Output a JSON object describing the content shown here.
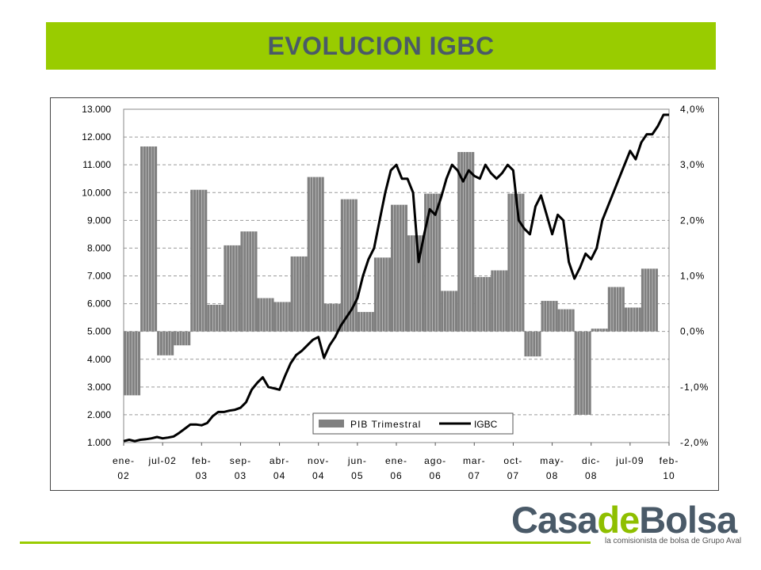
{
  "header": {
    "title": "EVOLUCION IGBC"
  },
  "logo": {
    "part1": "Casa",
    "part2": "de",
    "part3": "Bolsa",
    "tagline": "la comisionista de bolsa de Grupo Aval",
    "colors": {
      "dark": "#4a5a68",
      "green": "#8fbf00"
    }
  },
  "colors": {
    "banner": "#99cc00",
    "bars": "#808080",
    "line": "#000000"
  },
  "chart_data": {
    "type": "bar+line",
    "title": "",
    "x_tick_labels": [
      {
        "line1": "ene-",
        "line2": "02"
      },
      {
        "line1": "jul-02",
        "line2": ""
      },
      {
        "line1": "feb-",
        "line2": "03"
      },
      {
        "line1": "sep-",
        "line2": "03"
      },
      {
        "line1": "abr-",
        "line2": "04"
      },
      {
        "line1": "nov-",
        "line2": "04"
      },
      {
        "line1": "jun-",
        "line2": "05"
      },
      {
        "line1": "ene-",
        "line2": "06"
      },
      {
        "line1": "ago-",
        "line2": "06"
      },
      {
        "line1": "mar-",
        "line2": "07"
      },
      {
        "line1": "oct-",
        "line2": "07"
      },
      {
        "line1": "may-",
        "line2": "08"
      },
      {
        "line1": "dic-",
        "line2": "08"
      },
      {
        "line1": "jul-09",
        "line2": ""
      },
      {
        "line1": "feb-",
        "line2": "10"
      }
    ],
    "x_range": [
      0,
      98
    ],
    "left_axis": {
      "range": [
        1000,
        13000
      ],
      "ticks": [
        "1.000",
        "2.000",
        "3.000",
        "4.000",
        "5.000",
        "6.000",
        "7.000",
        "8.000",
        "9.000",
        "10.000",
        "11.000",
        "12.000",
        "13.000"
      ]
    },
    "right_axis": {
      "range": [
        -2.0,
        4.0
      ],
      "ticks": [
        "-2,0%",
        "-1,0%",
        "0,0%",
        "1,0%",
        "2,0%",
        "3,0%",
        "4,0%"
      ]
    },
    "grid": true,
    "legend": {
      "position": "bottom-right",
      "entries": [
        "PIB Trimestral",
        "IGBC"
      ]
    },
    "series": [
      {
        "name": "PIB Trimestral",
        "type": "bar",
        "axis": "right",
        "quarters": [
          {
            "start": 0,
            "end": 3,
            "value": -1.15
          },
          {
            "start": 3,
            "end": 6,
            "value": 3.33
          },
          {
            "start": 6,
            "end": 9,
            "value": -0.43
          },
          {
            "start": 9,
            "end": 12,
            "value": -0.25
          },
          {
            "start": 12,
            "end": 15,
            "value": 2.55
          },
          {
            "start": 15,
            "end": 18,
            "value": 0.48
          },
          {
            "start": 18,
            "end": 21,
            "value": 1.55
          },
          {
            "start": 21,
            "end": 24,
            "value": 1.8
          },
          {
            "start": 24,
            "end": 27,
            "value": 0.6
          },
          {
            "start": 27,
            "end": 30,
            "value": 0.53
          },
          {
            "start": 30,
            "end": 33,
            "value": 1.35
          },
          {
            "start": 33,
            "end": 36,
            "value": 2.78
          },
          {
            "start": 36,
            "end": 39,
            "value": 0.5
          },
          {
            "start": 39,
            "end": 42,
            "value": 2.38
          },
          {
            "start": 42,
            "end": 45,
            "value": 0.35
          },
          {
            "start": 45,
            "end": 48,
            "value": 1.33
          },
          {
            "start": 48,
            "end": 51,
            "value": 2.28
          },
          {
            "start": 51,
            "end": 54,
            "value": 1.73
          },
          {
            "start": 54,
            "end": 57,
            "value": 2.48
          },
          {
            "start": 57,
            "end": 60,
            "value": 0.73
          },
          {
            "start": 60,
            "end": 63,
            "value": 3.23
          },
          {
            "start": 63,
            "end": 66,
            "value": 0.98
          },
          {
            "start": 66,
            "end": 69,
            "value": 1.1
          },
          {
            "start": 69,
            "end": 72,
            "value": 2.48
          },
          {
            "start": 72,
            "end": 75,
            "value": -0.45
          },
          {
            "start": 75,
            "end": 78,
            "value": 0.55
          },
          {
            "start": 78,
            "end": 81,
            "value": 0.4
          },
          {
            "start": 81,
            "end": 84,
            "value": -1.5
          },
          {
            "start": 84,
            "end": 87,
            "value": 0.05
          },
          {
            "start": 87,
            "end": 90,
            "value": 0.8
          },
          {
            "start": 90,
            "end": 93,
            "value": 0.43
          },
          {
            "start": 93,
            "end": 96,
            "value": 1.13
          }
        ]
      },
      {
        "name": "IGBC",
        "type": "line",
        "axis": "left",
        "points": [
          [
            0,
            1050
          ],
          [
            1,
            1100
          ],
          [
            2,
            1050
          ],
          [
            3,
            1100
          ],
          [
            4,
            1120
          ],
          [
            5,
            1150
          ],
          [
            6,
            1200
          ],
          [
            7,
            1150
          ],
          [
            8,
            1180
          ],
          [
            9,
            1220
          ],
          [
            10,
            1350
          ],
          [
            11,
            1500
          ],
          [
            12,
            1650
          ],
          [
            13,
            1650
          ],
          [
            14,
            1620
          ],
          [
            15,
            1700
          ],
          [
            16,
            1950
          ],
          [
            17,
            2100
          ],
          [
            18,
            2100
          ],
          [
            19,
            2150
          ],
          [
            20,
            2180
          ],
          [
            21,
            2250
          ],
          [
            22,
            2450
          ],
          [
            23,
            2900
          ],
          [
            24,
            3150
          ],
          [
            25,
            3350
          ],
          [
            26,
            3000
          ],
          [
            27,
            2950
          ],
          [
            28,
            2900
          ],
          [
            29,
            3400
          ],
          [
            30,
            3850
          ],
          [
            31,
            4150
          ],
          [
            32,
            4300
          ],
          [
            33,
            4500
          ],
          [
            34,
            4700
          ],
          [
            35,
            4800
          ],
          [
            36,
            4050
          ],
          [
            37,
            4500
          ],
          [
            38,
            4800
          ],
          [
            39,
            5200
          ],
          [
            40,
            5500
          ],
          [
            41,
            5800
          ],
          [
            42,
            6200
          ],
          [
            43,
            7000
          ],
          [
            44,
            7600
          ],
          [
            45,
            8000
          ],
          [
            46,
            9000
          ],
          [
            47,
            10000
          ],
          [
            48,
            10800
          ],
          [
            49,
            11000
          ],
          [
            50,
            10500
          ],
          [
            51,
            10500
          ],
          [
            52,
            10000
          ],
          [
            53,
            7500
          ],
          [
            54,
            8500
          ],
          [
            55,
            9400
          ],
          [
            56,
            9200
          ],
          [
            57,
            9800
          ],
          [
            58,
            10500
          ],
          [
            59,
            11000
          ],
          [
            60,
            10800
          ],
          [
            61,
            10400
          ],
          [
            62,
            10800
          ],
          [
            63,
            10600
          ],
          [
            64,
            10500
          ],
          [
            65,
            11000
          ],
          [
            66,
            10700
          ],
          [
            67,
            10500
          ],
          [
            68,
            10700
          ],
          [
            69,
            11000
          ],
          [
            70,
            10800
          ],
          [
            71,
            9000
          ],
          [
            72,
            8700
          ],
          [
            73,
            8500
          ],
          [
            74,
            9500
          ],
          [
            75,
            9900
          ],
          [
            76,
            9200
          ],
          [
            77,
            8500
          ],
          [
            78,
            9200
          ],
          [
            79,
            9000
          ],
          [
            80,
            7500
          ],
          [
            81,
            6900
          ],
          [
            82,
            7300
          ],
          [
            83,
            7800
          ],
          [
            84,
            7600
          ],
          [
            85,
            8000
          ],
          [
            86,
            9000
          ],
          [
            87,
            9500
          ],
          [
            88,
            10000
          ],
          [
            89,
            10500
          ],
          [
            90,
            11000
          ],
          [
            91,
            11500
          ],
          [
            92,
            11200
          ],
          [
            93,
            11800
          ],
          [
            94,
            12100
          ],
          [
            95,
            12100
          ],
          [
            96,
            12400
          ],
          [
            97,
            12800
          ],
          [
            98,
            12800
          ]
        ]
      }
    ]
  }
}
